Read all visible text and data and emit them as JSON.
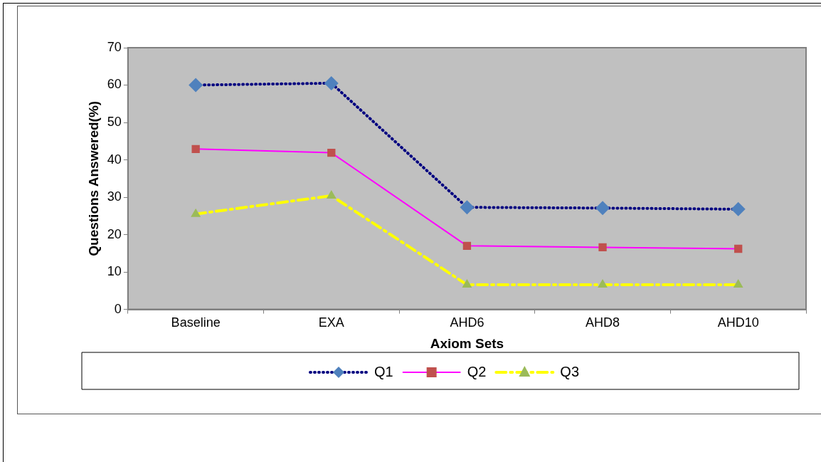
{
  "chart_data": {
    "type": "line",
    "xlabel": "Axiom Sets",
    "ylabel": "Questions Answered(%)",
    "categories": [
      "Baseline",
      "EXA",
      "AHD6",
      "AHD8",
      "AHD10"
    ],
    "series": [
      {
        "name": "Q1",
        "color": "#000080",
        "colors": [
          "#4f81bd",
          "#4f81bd",
          "#4f81bd",
          "#4f81bd",
          "#4f81bd"
        ],
        "marker": "diamond",
        "line_style": "dotted",
        "values": [
          60,
          60.5,
          27.3,
          27.1,
          26.8
        ]
      },
      {
        "name": "Q2",
        "color": "#ff00ff",
        "colors": [
          "#c0504d",
          "#c0504d",
          "#c0504d",
          "#c0504d",
          "#c0504d"
        ],
        "marker": "square",
        "line_style": "solid",
        "values": [
          42.9,
          41.9,
          17,
          16.6,
          16.2
        ]
      },
      {
        "name": "Q3",
        "color": "#ffff00",
        "colors": [
          "#9bbb59",
          "#9bbb59",
          "#9bbb59",
          "#9bbb59",
          "#9bbb59"
        ],
        "marker": "triangle",
        "line_style": "dashed",
        "values": [
          25.5,
          30.4,
          6.6,
          6.6,
          6.6
        ]
      }
    ],
    "ylim": [
      0,
      70
    ],
    "yticks": [
      0,
      10,
      20,
      30,
      40,
      50,
      60,
      70
    ],
    "grid": false,
    "legend": "bottom"
  }
}
